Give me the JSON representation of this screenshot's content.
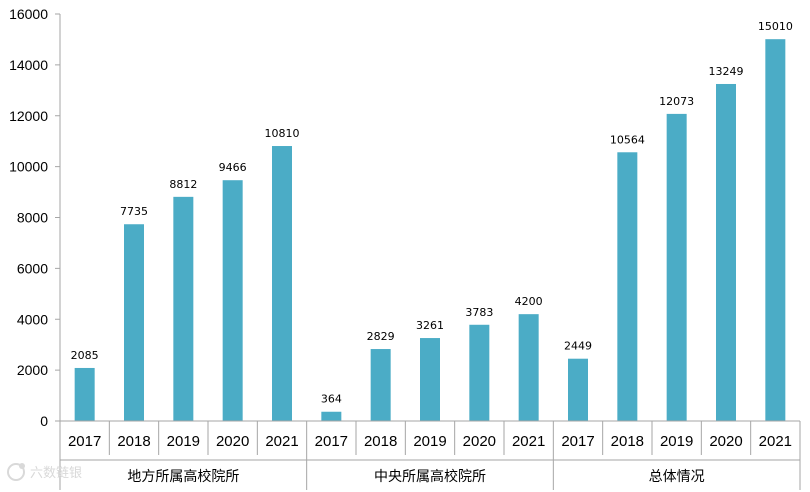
{
  "chart_data": {
    "type": "bar",
    "ylim": [
      0,
      16000
    ],
    "yticks": [
      0,
      2000,
      4000,
      6000,
      8000,
      10000,
      12000,
      14000,
      16000
    ],
    "grid": false,
    "legend": "none",
    "bar_color": "#4bacc6",
    "groups": [
      {
        "name": "地方所属高校院所",
        "categories": [
          "2017",
          "2018",
          "2019",
          "2020",
          "2021"
        ],
        "values": [
          2085,
          7735,
          8812,
          9466,
          10810
        ]
      },
      {
        "name": "中央所属高校院所",
        "categories": [
          "2017",
          "2018",
          "2019",
          "2020",
          "2021"
        ],
        "values": [
          364,
          2829,
          3261,
          3783,
          4200
        ]
      },
      {
        "name": "总体情况",
        "categories": [
          "2017",
          "2018",
          "2019",
          "2020",
          "2021"
        ],
        "values": [
          2449,
          10564,
          12073,
          13249,
          15010
        ]
      }
    ]
  },
  "watermark": {
    "icon": "logo-icon",
    "text": "六数链银"
  }
}
